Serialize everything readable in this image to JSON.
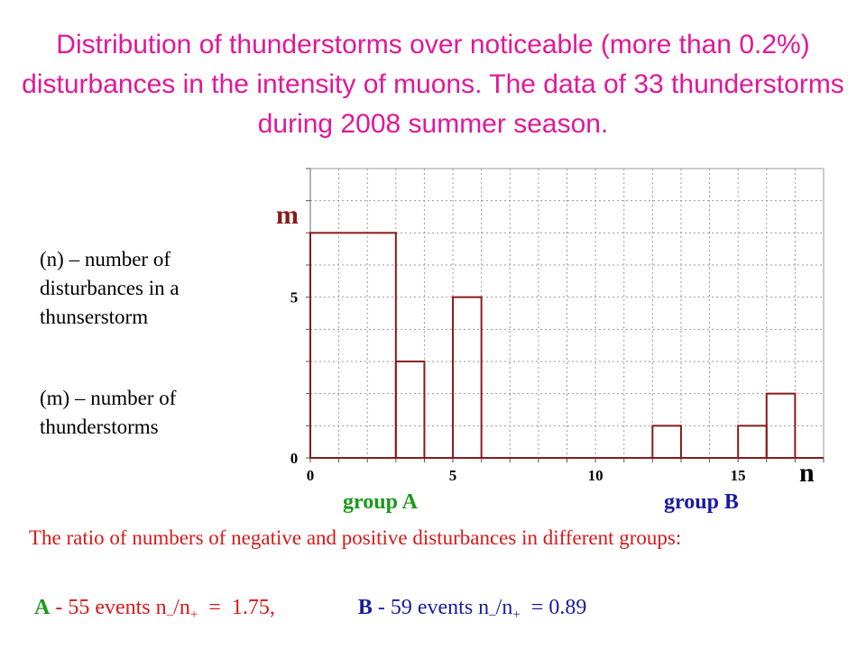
{
  "title": "Distribution of thunderstorms over noticeable (more than 0.2%) disturbances in the intensity of muons. The data of 33 thunderstorms during 2008 summer season.",
  "legend": {
    "n_definition": "(n) – number of disturbances in a thunserstorm",
    "m_definition": "(m) – number of thunderstorms"
  },
  "groups": {
    "a_label": "group A",
    "b_label": "group B"
  },
  "ratio_note": "The ratio of numbers of negative and positive disturbances in different groups:",
  "results": {
    "a": {
      "label": "A",
      "events": " - 55 events  n",
      "sub_minus": "–",
      "slash": "/n",
      "sub_plus": "+",
      "ratio": "  =  1.75,"
    },
    "b": {
      "label": "B",
      "events": " - 59 events  n",
      "sub_minus": "–",
      "slash": "/n",
      "sub_plus": "+",
      "ratio": "  = 0.89"
    }
  },
  "colors": {
    "title": "#e0189a",
    "histogram": "#8b1a1a",
    "grid": "#9a9a9a",
    "group_a": "#1a9a1a",
    "group_b": "#1a1aa0",
    "note": "#d81818"
  },
  "chart_data": {
    "type": "bar",
    "style": "step-histogram",
    "xlabel": "n",
    "ylabel": "m",
    "xlim": [
      0,
      18
    ],
    "ylim": [
      0,
      9
    ],
    "x_ticks": [
      0,
      5,
      10,
      15
    ],
    "y_ticks": [
      0,
      5
    ],
    "grid": true,
    "bins": [
      {
        "from": 0,
        "to": 3,
        "m": 7
      },
      {
        "from": 3,
        "to": 4,
        "m": 3
      },
      {
        "from": 4,
        "to": 5,
        "m": 0
      },
      {
        "from": 5,
        "to": 6,
        "m": 5
      },
      {
        "from": 6,
        "to": 12,
        "m": 0
      },
      {
        "from": 12,
        "to": 13,
        "m": 1
      },
      {
        "from": 13,
        "to": 15,
        "m": 0
      },
      {
        "from": 15,
        "to": 16,
        "m": 1
      },
      {
        "from": 16,
        "to": 17,
        "m": 2
      },
      {
        "from": 17,
        "to": 18,
        "m": 0
      }
    ]
  }
}
